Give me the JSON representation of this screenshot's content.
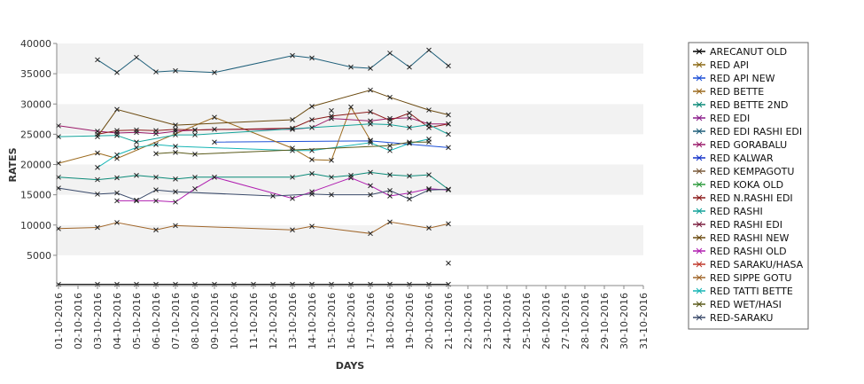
{
  "chart_data": {
    "type": "line",
    "title": "",
    "xlabel": "DAYS",
    "ylabel": "RATES",
    "ylim": [
      0,
      40000
    ],
    "y_ticks": [
      5000,
      10000,
      15000,
      20000,
      25000,
      30000,
      35000,
      40000
    ],
    "grid": "alternating horizontal bands",
    "legend_position": "right",
    "x": [
      "01-10-2016",
      "02-10-2016",
      "03-10-2016",
      "04-10-2016",
      "05-10-2016",
      "06-10-2016",
      "07-10-2016",
      "08-10-2016",
      "09-10-2016",
      "10-10-2016",
      "11-10-2016",
      "12-10-2016",
      "13-10-2016",
      "14-10-2016",
      "15-10-2016",
      "16-10-2016",
      "17-10-2016",
      "18-10-2016",
      "19-10-2016",
      "20-10-2016",
      "21-10-2016",
      "22-10-2016",
      "23-10-2016",
      "24-10-2016",
      "25-10-2016",
      "26-10-2016",
      "27-10-2016",
      "28-10-2016",
      "29-10-2016",
      "30-10-2016",
      "31-10-2016"
    ],
    "series": [
      {
        "name": "ARECANUT OLD",
        "color": "#000000",
        "values": [
          200,
          null,
          200,
          200,
          200,
          200,
          200,
          200,
          200,
          200,
          200,
          200,
          200,
          200,
          200,
          200,
          200,
          200,
          200,
          200,
          200,
          null,
          null,
          null,
          null,
          null,
          null,
          null,
          null,
          null,
          null
        ]
      },
      {
        "name": "RED API",
        "color": "#8b6914",
        "values": [
          null,
          null,
          null,
          null,
          null,
          null,
          null,
          null,
          null,
          null,
          null,
          null,
          null,
          null,
          null,
          null,
          null,
          null,
          null,
          null,
          3700,
          null,
          null,
          null,
          null,
          null,
          null,
          null,
          null,
          null,
          null
        ]
      },
      {
        "name": "RED API NEW",
        "color": "#1c4fd6",
        "values": [
          null,
          null,
          null,
          null,
          null,
          null,
          null,
          null,
          23700,
          null,
          null,
          null,
          null,
          null,
          null,
          null,
          23900,
          null,
          null,
          null,
          22800,
          null,
          null,
          null,
          null,
          null,
          null,
          null,
          null,
          null,
          null
        ]
      },
      {
        "name": "RED BETTE",
        "color": "#9c6b1f",
        "values": [
          20200,
          null,
          21900,
          21000,
          null,
          null,
          null,
          null,
          27800,
          null,
          null,
          null,
          22700,
          20800,
          20700,
          29500,
          24000,
          null,
          null,
          null,
          null,
          null,
          null,
          null,
          null,
          null,
          null,
          null,
          null,
          null,
          null
        ]
      },
      {
        "name": "RED BETTE 2ND",
        "color": "#0b8a78",
        "values": [
          17900,
          null,
          17500,
          17800,
          18200,
          17900,
          17600,
          17900,
          17900,
          null,
          null,
          null,
          17900,
          18500,
          17900,
          18200,
          18700,
          18300,
          18100,
          18300,
          15900,
          null,
          null,
          null,
          null,
          null,
          null,
          null,
          null,
          null,
          null
        ]
      },
      {
        "name": "RED EDI",
        "color": "#8a1c8a",
        "values": [
          null,
          null,
          null,
          null,
          null,
          null,
          null,
          null,
          null,
          null,
          null,
          null,
          null,
          null,
          null,
          null,
          null,
          null,
          null,
          null,
          null,
          null,
          null,
          null,
          null,
          null,
          null,
          null,
          null,
          null,
          null
        ]
      },
      {
        "name": "RED EDI RASHI EDI",
        "color": "#1f5f7a",
        "values": [
          null,
          null,
          37300,
          35200,
          37700,
          35300,
          35500,
          null,
          35200,
          null,
          null,
          null,
          38000,
          37600,
          null,
          36100,
          35900,
          38400,
          36100,
          38900,
          36300,
          null,
          null,
          null,
          null,
          null,
          null,
          null,
          null,
          null,
          null
        ]
      },
      {
        "name": "RED GORABALU",
        "color": "#9b1c6a",
        "values": [
          26400,
          null,
          25500,
          25200,
          25300,
          25100,
          25500,
          25700,
          25800,
          null,
          null,
          null,
          25800,
          26100,
          27600,
          null,
          27200,
          27600,
          27700,
          26700,
          26700,
          null,
          null,
          null,
          null,
          null,
          null,
          null,
          null,
          null,
          null
        ]
      },
      {
        "name": "RED KALWAR",
        "color": "#1433c9",
        "values": [
          null,
          null,
          null,
          null,
          null,
          null,
          null,
          null,
          null,
          null,
          null,
          null,
          null,
          null,
          null,
          null,
          null,
          null,
          null,
          null,
          null,
          null,
          null,
          null,
          null,
          null,
          null,
          null,
          null,
          null,
          null
        ]
      },
      {
        "name": "RED KEMPAGOTU",
        "color": "#7a5a3a",
        "values": [
          null,
          null,
          null,
          null,
          null,
          null,
          null,
          null,
          null,
          null,
          null,
          null,
          null,
          null,
          null,
          null,
          null,
          null,
          null,
          null,
          null,
          null,
          null,
          null,
          null,
          null,
          null,
          null,
          null,
          null,
          null
        ]
      },
      {
        "name": "RED KOKA OLD",
        "color": "#2e9a3e",
        "values": [
          null,
          null,
          null,
          null,
          null,
          null,
          null,
          null,
          null,
          null,
          null,
          null,
          null,
          null,
          null,
          null,
          null,
          null,
          null,
          null,
          null,
          null,
          null,
          null,
          null,
          null,
          null,
          null,
          null,
          null,
          null
        ]
      },
      {
        "name": "RED N.RASHI EDI",
        "color": "#8b1a1a",
        "values": [
          null,
          null,
          25000,
          25600,
          25700,
          25600,
          25800,
          25700,
          null,
          null,
          null,
          null,
          26000,
          27400,
          28000,
          null,
          28700,
          27300,
          28500,
          26100,
          26700,
          null,
          null,
          null,
          null,
          null,
          null,
          null,
          null,
          null,
          null
        ]
      },
      {
        "name": "RED RASHI",
        "color": "#14a39a",
        "values": [
          24600,
          null,
          null,
          24800,
          23700,
          null,
          24900,
          24900,
          null,
          null,
          null,
          null,
          null,
          null,
          null,
          null,
          26700,
          26600,
          26100,
          26600,
          25000,
          null,
          null,
          null,
          null,
          null,
          null,
          null,
          null,
          null,
          null
        ]
      },
      {
        "name": "RED RASHI EDI",
        "color": "#7a1f3f",
        "values": [
          null,
          null,
          null,
          null,
          null,
          null,
          null,
          null,
          null,
          null,
          null,
          null,
          null,
          null,
          null,
          null,
          null,
          null,
          null,
          null,
          null,
          null,
          null,
          null,
          null,
          null,
          null,
          null,
          null,
          null,
          null
        ]
      },
      {
        "name": "RED RASHI NEW",
        "color": "#6b4a10",
        "values": [
          null,
          null,
          24600,
          29100,
          null,
          null,
          26500,
          null,
          null,
          null,
          null,
          null,
          27400,
          29600,
          null,
          null,
          32300,
          31100,
          null,
          29000,
          28200,
          null,
          null,
          null,
          null,
          null,
          null,
          null,
          null,
          null,
          null
        ]
      },
      {
        "name": "RED RASHI OLD",
        "color": "#b01fb0",
        "values": [
          null,
          null,
          null,
          14000,
          14000,
          14000,
          13800,
          16000,
          17900,
          null,
          null,
          null,
          14400,
          15500,
          null,
          17800,
          16500,
          14800,
          15300,
          16000,
          15800,
          null,
          null,
          null,
          null,
          null,
          null,
          null,
          null,
          null,
          null
        ]
      },
      {
        "name": "RED SARAKU/HASA",
        "color": "#c0392b",
        "values": [
          null,
          null,
          null,
          null,
          null,
          null,
          null,
          null,
          null,
          null,
          null,
          null,
          null,
          null,
          28900,
          null,
          null,
          null,
          null,
          null,
          null,
          null,
          null,
          null,
          null,
          null,
          null,
          null,
          null,
          null,
          null
        ]
      },
      {
        "name": "RED SIPPE GOTU",
        "color": "#a0662a",
        "values": [
          9400,
          null,
          9600,
          10400,
          null,
          9200,
          9900,
          null,
          null,
          null,
          null,
          null,
          9200,
          9800,
          null,
          null,
          8600,
          10500,
          null,
          9500,
          10200,
          null,
          null,
          null,
          null,
          null,
          null,
          null,
          null,
          null,
          null
        ]
      },
      {
        "name": "RED TATTI BETTE",
        "color": "#17b5b5",
        "values": [
          null,
          null,
          19500,
          21600,
          22800,
          23300,
          23000,
          null,
          null,
          null,
          null,
          null,
          22300,
          22300,
          null,
          null,
          23600,
          22300,
          23500,
          24200,
          null,
          null,
          null,
          null,
          null,
          null,
          null,
          null,
          null,
          null,
          null
        ]
      },
      {
        "name": "RED WET/HASI",
        "color": "#5a5a1a",
        "values": [
          null,
          null,
          null,
          null,
          null,
          21800,
          22000,
          21700,
          null,
          null,
          null,
          null,
          null,
          null,
          null,
          null,
          null,
          23100,
          23700,
          23700,
          null,
          null,
          null,
          null,
          null,
          null,
          null,
          null,
          null,
          null,
          null
        ]
      },
      {
        "name": "RED-SARAKU",
        "color": "#3a4a6a",
        "values": [
          16100,
          null,
          15100,
          15300,
          14100,
          15800,
          15500,
          null,
          null,
          null,
          null,
          14800,
          null,
          15100,
          15000,
          null,
          15000,
          15700,
          14300,
          15800,
          15900,
          null,
          null,
          null,
          null,
          null,
          null,
          null,
          null,
          null,
          null
        ]
      }
    ]
  }
}
